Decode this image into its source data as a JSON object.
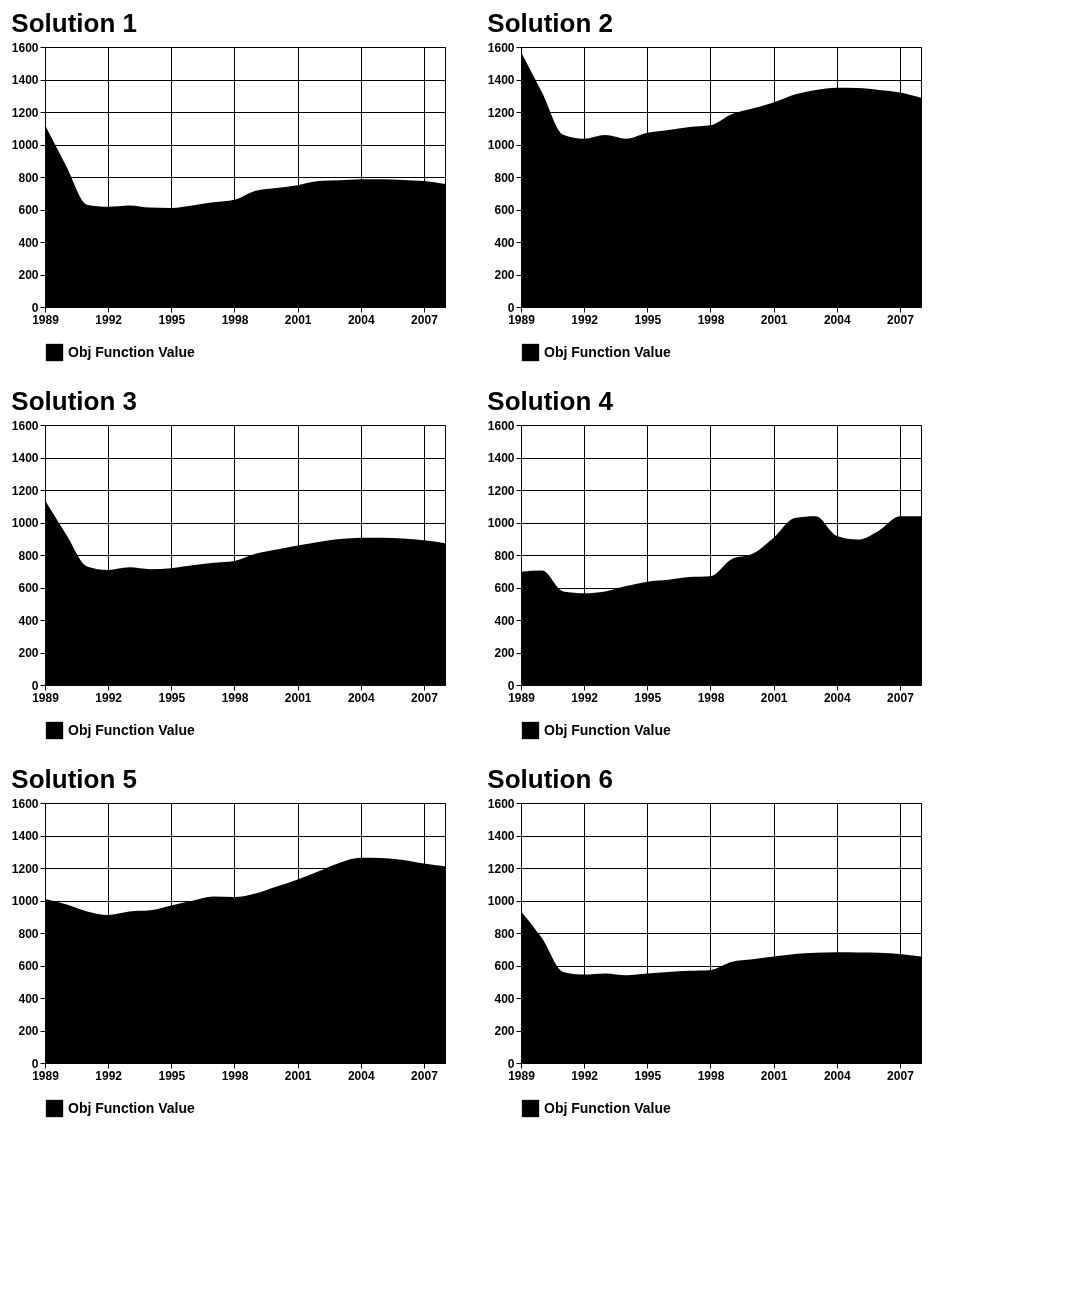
{
  "chart_data": [
    {
      "type": "area",
      "title": "Solution 1",
      "x": [
        1989,
        1990,
        1991,
        1992,
        1993,
        1994,
        1995,
        1996,
        1997,
        1998,
        1999,
        2000,
        2001,
        2002,
        2003,
        2004,
        2005,
        2006,
        2007,
        2008
      ],
      "xlim": [
        1989,
        2008
      ],
      "xticks": [
        1989,
        1992,
        1995,
        1998,
        2001,
        2004,
        2007
      ],
      "ylim": [
        0,
        1600
      ],
      "yticks": [
        0,
        200,
        400,
        600,
        800,
        1000,
        1200,
        1400,
        1600
      ],
      "grid": true,
      "legend": "bottom",
      "series": [
        {
          "name": "Obj Function Value",
          "color": "#000000",
          "values": [
            1120,
            870,
            630,
            617,
            625,
            612,
            610,
            625,
            645,
            660,
            715,
            733,
            750,
            775,
            780,
            786,
            786,
            782,
            775,
            757
          ]
        }
      ]
    },
    {
      "type": "area",
      "title": "Solution 2",
      "x": [
        1989,
        1990,
        1991,
        1992,
        1993,
        1994,
        1995,
        1996,
        1997,
        1998,
        1999,
        2000,
        2001,
        2002,
        2003,
        2004,
        2005,
        2006,
        2007,
        2008
      ],
      "xlim": [
        1989,
        2008
      ],
      "xticks": [
        1989,
        1992,
        1995,
        1998,
        2001,
        2004,
        2007
      ],
      "ylim": [
        0,
        1600
      ],
      "yticks": [
        0,
        200,
        400,
        600,
        800,
        1000,
        1200,
        1400,
        1600
      ],
      "grid": true,
      "legend": "bottom",
      "series": [
        {
          "name": "Obj Function Value",
          "color": "#000000",
          "values": [
            1570,
            1320,
            1060,
            1035,
            1058,
            1035,
            1072,
            1090,
            1108,
            1118,
            1186,
            1222,
            1258,
            1307,
            1336,
            1350,
            1348,
            1336,
            1320,
            1287
          ]
        }
      ]
    },
    {
      "type": "area",
      "title": "Solution 3",
      "x": [
        1989,
        1990,
        1991,
        1992,
        1993,
        1994,
        1995,
        1996,
        1997,
        1998,
        1999,
        2000,
        2001,
        2002,
        2003,
        2004,
        2005,
        2006,
        2007,
        2008
      ],
      "xlim": [
        1989,
        2008
      ],
      "xticks": [
        1989,
        1992,
        1995,
        1998,
        2001,
        2004,
        2007
      ],
      "ylim": [
        0,
        1600
      ],
      "yticks": [
        0,
        200,
        400,
        600,
        800,
        1000,
        1200,
        1400,
        1600
      ],
      "grid": true,
      "legend": "bottom",
      "series": [
        {
          "name": "Obj Function Value",
          "color": "#000000",
          "values": [
            1137,
            928,
            730,
            708,
            724,
            713,
            719,
            737,
            752,
            763,
            807,
            834,
            858,
            880,
            898,
            906,
            906,
            902,
            891,
            873
          ]
        }
      ]
    },
    {
      "type": "area",
      "title": "Solution 4",
      "x": [
        1989,
        1990,
        1991,
        1992,
        1993,
        1994,
        1995,
        1996,
        1997,
        1998,
        1999,
        2000,
        2001,
        2002,
        2003,
        2004,
        2005,
        2006,
        2007,
        2008
      ],
      "xlim": [
        1989,
        2008
      ],
      "xticks": [
        1989,
        1992,
        1995,
        1998,
        2001,
        2004,
        2007
      ],
      "ylim": [
        0,
        1600
      ],
      "yticks": [
        0,
        200,
        400,
        600,
        800,
        1000,
        1200,
        1400,
        1600
      ],
      "grid": true,
      "legend": "bottom",
      "series": [
        {
          "name": "Obj Function Value",
          "color": "#000000",
          "values": [
            697,
            704,
            576,
            565,
            576,
            609,
            636,
            647,
            664,
            669,
            774,
            807,
            906,
            1027,
            1038,
            917,
            895,
            950,
            1038,
            1038
          ]
        }
      ]
    },
    {
      "type": "area",
      "title": "Solution 5",
      "x": [
        1989,
        1990,
        1991,
        1992,
        1993,
        1994,
        1995,
        1996,
        1997,
        1998,
        1999,
        2000,
        2001,
        2002,
        2003,
        2004,
        2005,
        2006,
        2007,
        2008
      ],
      "xlim": [
        1989,
        2008
      ],
      "xticks": [
        1989,
        1992,
        1995,
        1998,
        2001,
        2004,
        2007
      ],
      "ylim": [
        0,
        1600
      ],
      "yticks": [
        0,
        200,
        400,
        600,
        800,
        1000,
        1200,
        1400,
        1600
      ],
      "grid": true,
      "legend": "bottom",
      "series": [
        {
          "name": "Obj Function Value",
          "color": "#000000",
          "values": [
            1010,
            977,
            933,
            911,
            933,
            940,
            970,
            999,
            1025,
            1021,
            1043,
            1086,
            1130,
            1180,
            1233,
            1263,
            1261,
            1250,
            1228,
            1211
          ]
        }
      ]
    },
    {
      "type": "area",
      "title": "Solution 6",
      "x": [
        1989,
        1990,
        1991,
        1992,
        1993,
        1994,
        1995,
        1996,
        1997,
        1998,
        1999,
        2000,
        2001,
        2002,
        2003,
        2004,
        2005,
        2006,
        2007,
        2008
      ],
      "xlim": [
        1989,
        2008
      ],
      "xticks": [
        1989,
        1992,
        1995,
        1998,
        2001,
        2004,
        2007
      ],
      "ylim": [
        0,
        1600
      ],
      "yticks": [
        0,
        200,
        400,
        600,
        800,
        1000,
        1200,
        1400,
        1600
      ],
      "grid": true,
      "legend": "bottom",
      "series": [
        {
          "name": "Obj Function Value",
          "color": "#000000",
          "values": [
            933,
            767,
            560,
            544,
            551,
            540,
            551,
            560,
            567,
            573,
            622,
            638,
            655,
            671,
            678,
            682,
            680,
            678,
            671,
            655
          ]
        }
      ]
    }
  ]
}
